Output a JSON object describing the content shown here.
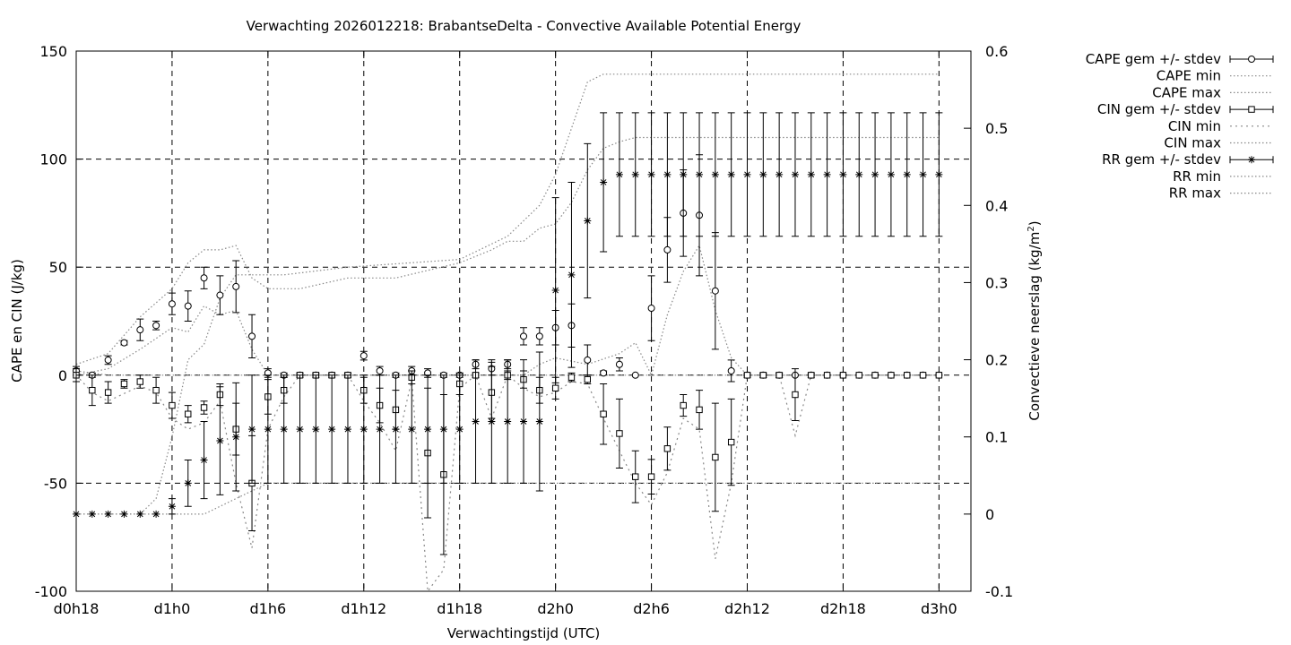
{
  "chart_data": {
    "type": "scatter",
    "title": "Verwachting 2026012218: BrabantseDelta - Convective Available Potential Energy",
    "xlabel": "Verwachtingstijd (UTC)",
    "ylabel": "CAPE en CIN (J/kg)",
    "y2label": "Convectieve neerslag (kg/m",
    "y2label_sup": "2",
    "y2label_end": ")",
    "xlim": [
      18,
      74
    ],
    "ylim": [
      -100,
      150
    ],
    "y2lim": [
      -0.1,
      0.6
    ],
    "x_ticks": [
      {
        "value": 18,
        "label": "d0h18"
      },
      {
        "value": 24,
        "label": "d1h0"
      },
      {
        "value": 30,
        "label": "d1h6"
      },
      {
        "value": 36,
        "label": "d1h12"
      },
      {
        "value": 42,
        "label": "d1h18"
      },
      {
        "value": 48,
        "label": "d2h0"
      },
      {
        "value": 54,
        "label": "d2h6"
      },
      {
        "value": 60,
        "label": "d2h12"
      },
      {
        "value": 66,
        "label": "d2h18"
      },
      {
        "value": 72,
        "label": "d3h0"
      }
    ],
    "y_ticks": [
      {
        "value": 150,
        "label": "150"
      },
      {
        "value": 100,
        "label": "100"
      },
      {
        "value": 50,
        "label": "50"
      },
      {
        "value": 0,
        "label": "0"
      },
      {
        "value": -50,
        "label": "-50"
      },
      {
        "value": -100,
        "label": "-100"
      }
    ],
    "y2_ticks": [
      {
        "value": 0.6,
        "label": "0.6"
      },
      {
        "value": 0.5,
        "label": "0.5"
      },
      {
        "value": 0.4,
        "label": "0.4"
      },
      {
        "value": 0.3,
        "label": "0.3"
      },
      {
        "value": 0.2,
        "label": "0.2"
      },
      {
        "value": 0.1,
        "label": "0.1"
      },
      {
        "value": 0,
        "label": "0"
      },
      {
        "value": -0.1,
        "label": "-0.1"
      }
    ],
    "grid": "dashed",
    "legend_position": "top-right-outside",
    "legend": [
      {
        "label": "CAPE gem +/- stdev",
        "style": "errorbar",
        "marker": "circle"
      },
      {
        "label": "CAPE min",
        "style": "dotted"
      },
      {
        "label": "CAPE max",
        "style": "dotted"
      },
      {
        "label": "CIN gem +/- stdev",
        "style": "errorbar",
        "marker": "square"
      },
      {
        "label": "CIN min",
        "style": "dotted-sparse"
      },
      {
        "label": "CIN max",
        "style": "dotted"
      },
      {
        "label": "RR gem +/- stdev",
        "style": "errorbar",
        "marker": "star"
      },
      {
        "label": "RR min",
        "style": "dotted"
      },
      {
        "label": "RR max",
        "style": "dotted"
      }
    ],
    "series": [
      {
        "id": "cape",
        "axis": "y",
        "marker": "circle",
        "x": [
          18,
          19,
          20,
          21,
          22,
          23,
          24,
          25,
          26,
          27,
          28,
          29,
          30,
          31,
          32,
          33,
          34,
          35,
          36,
          37,
          38,
          39,
          40,
          41,
          42,
          43,
          44,
          45,
          46,
          47,
          48,
          49,
          50,
          51,
          52,
          53,
          54,
          55,
          56,
          57,
          58,
          59,
          60,
          61,
          62,
          63,
          64,
          65,
          66,
          67,
          68,
          69,
          70,
          71,
          72
        ],
        "mean": [
          2,
          0,
          7,
          15,
          21,
          23,
          33,
          32,
          45,
          37,
          41,
          18,
          1,
          0,
          0,
          0,
          0,
          0,
          9,
          2,
          0,
          2,
          1,
          0,
          0,
          5,
          3,
          5,
          18,
          18,
          22,
          23,
          7,
          1,
          5,
          0,
          31,
          58,
          75,
          74,
          39,
          2,
          0,
          0,
          0,
          0,
          0,
          0,
          0,
          0,
          0,
          0,
          0,
          0,
          0
        ],
        "stdev": [
          2,
          1,
          2,
          1,
          5,
          2,
          5,
          7,
          5,
          9,
          12,
          10,
          2,
          1,
          1,
          0,
          0,
          1,
          2,
          2,
          1,
          2,
          2,
          1,
          1,
          2,
          3,
          2,
          4,
          4,
          8,
          10,
          7,
          1,
          3,
          0,
          15,
          15,
          20,
          28,
          27,
          5,
          1,
          1,
          1,
          0,
          0,
          0,
          0,
          0,
          0,
          0,
          0,
          0,
          0
        ]
      },
      {
        "id": "cin",
        "axis": "y",
        "marker": "square",
        "x": [
          18,
          19,
          20,
          21,
          22,
          23,
          24,
          25,
          26,
          27,
          28,
          29,
          30,
          31,
          32,
          33,
          34,
          35,
          36,
          37,
          38,
          39,
          40,
          41,
          42,
          43,
          44,
          45,
          46,
          47,
          48,
          49,
          50,
          51,
          52,
          53,
          54,
          55,
          56,
          57,
          58,
          59,
          60,
          61,
          62,
          63,
          64,
          65,
          66,
          67,
          68,
          69,
          70,
          71,
          72
        ],
        "mean": [
          0,
          -7,
          -8,
          -4,
          -3,
          -7,
          -14,
          -18,
          -15,
          -9,
          -25,
          -50,
          -10,
          -7,
          0,
          0,
          0,
          0,
          -7,
          -14,
          -16,
          -1,
          -36,
          -46,
          -4,
          0,
          -8,
          0,
          -2,
          -7,
          -6,
          -1,
          -2,
          -18,
          -27,
          -47,
          -47,
          -34,
          -14,
          -16,
          -38,
          -31,
          0,
          0,
          0,
          -9,
          0,
          0,
          0,
          0,
          0,
          0,
          0,
          0,
          0
        ],
        "stdev": [
          3,
          7,
          5,
          2,
          3,
          6,
          6,
          4,
          3,
          5,
          12,
          22,
          8,
          6,
          1,
          1,
          1,
          1,
          6,
          8,
          9,
          3,
          30,
          37,
          5,
          1,
          12,
          2,
          4,
          6,
          5,
          2,
          2,
          14,
          16,
          12,
          8,
          10,
          5,
          9,
          25,
          20,
          1,
          1,
          1,
          12,
          1,
          0,
          0,
          0,
          0,
          0,
          0,
          0,
          0
        ]
      },
      {
        "id": "rr",
        "axis": "y2",
        "marker": "star",
        "x": [
          18,
          19,
          20,
          21,
          22,
          23,
          24,
          25,
          26,
          27,
          28,
          29,
          30,
          31,
          32,
          33,
          34,
          35,
          36,
          37,
          38,
          39,
          40,
          41,
          42,
          43,
          44,
          45,
          46,
          47,
          48,
          49,
          50,
          51,
          52,
          53,
          54,
          55,
          56,
          57,
          58,
          59,
          60,
          61,
          62,
          63,
          64,
          65,
          66,
          67,
          68,
          69,
          70,
          71,
          72
        ],
        "mean": [
          0,
          0,
          0,
          0,
          0,
          0,
          0.01,
          0.04,
          0.07,
          0.095,
          0.1,
          0.11,
          0.11,
          0.11,
          0.11,
          0.11,
          0.11,
          0.11,
          0.11,
          0.11,
          0.11,
          0.11,
          0.11,
          0.11,
          0.11,
          0.12,
          0.12,
          0.12,
          0.12,
          0.12,
          0.29,
          0.31,
          0.38,
          0.43,
          0.44,
          0.44,
          0.44,
          0.44,
          0.44,
          0.44,
          0.44,
          0.44,
          0.44,
          0.44,
          0.44,
          0.44,
          0.44,
          0.44,
          0.44,
          0.44,
          0.44,
          0.44,
          0.44,
          0.44,
          0.44
        ],
        "stdev": [
          0,
          0,
          0,
          0,
          0,
          0,
          0.01,
          0.03,
          0.05,
          0.07,
          0.07,
          0.07,
          0.07,
          0.07,
          0.07,
          0.07,
          0.07,
          0.07,
          0.07,
          0.07,
          0.07,
          0.07,
          0.07,
          0.07,
          0.07,
          0.08,
          0.08,
          0.08,
          0.08,
          0.09,
          0.12,
          0.12,
          0.1,
          0.09,
          0.08,
          0.08,
          0.08,
          0.08,
          0.08,
          0.08,
          0.08,
          0.08,
          0.08,
          0.08,
          0.08,
          0.08,
          0.08,
          0.08,
          0.08,
          0.08,
          0.08,
          0.08,
          0.08,
          0.08,
          0.08
        ]
      }
    ],
    "envelopes": [
      {
        "id": "cape-max",
        "axis": "y",
        "x": [
          18,
          20,
          22,
          24,
          25,
          26,
          27,
          28,
          29,
          30,
          32,
          35,
          38,
          42,
          44,
          45,
          46,
          47,
          48,
          49,
          50,
          51,
          52,
          53,
          54,
          55,
          56,
          57,
          58,
          59,
          60,
          62,
          66,
          72
        ],
        "y": [
          5,
          10,
          27,
          40,
          52,
          58,
          58,
          60,
          45,
          40,
          40,
          45,
          45,
          52,
          58,
          62,
          62,
          68,
          70,
          80,
          95,
          105,
          108,
          110,
          110,
          110,
          110,
          110,
          110,
          110,
          110,
          110,
          110,
          110
        ]
      },
      {
        "id": "cape-min",
        "axis": "y",
        "x": [
          18,
          20,
          22,
          24,
          25,
          26,
          27,
          28,
          29,
          30,
          31,
          32,
          33,
          34,
          35,
          36,
          40,
          44,
          46,
          47,
          48,
          50,
          52,
          53,
          54,
          55,
          56,
          57,
          58,
          59,
          60,
          66,
          72
        ],
        "y": [
          0,
          3,
          12,
          22,
          20,
          32,
          28,
          30,
          12,
          0,
          0,
          0,
          0,
          0,
          0,
          0,
          0,
          0,
          0,
          5,
          8,
          5,
          10,
          15,
          0,
          28,
          48,
          60,
          30,
          8,
          0,
          0,
          0
        ]
      },
      {
        "id": "cin-min",
        "axis": "y",
        "x": [
          18,
          19,
          20,
          22,
          23,
          24,
          25,
          26,
          27,
          28,
          29,
          30,
          31,
          32,
          33,
          34,
          35,
          36,
          37,
          38,
          39,
          40,
          41,
          42,
          43,
          44,
          45,
          46,
          47,
          48,
          49,
          50,
          51,
          52,
          53,
          54,
          55,
          56,
          57,
          58,
          59,
          60,
          61,
          62,
          63,
          64,
          65,
          66,
          72
        ],
        "y": [
          0,
          -8,
          -12,
          -5,
          -8,
          -20,
          -25,
          -22,
          -12,
          -50,
          -80,
          -25,
          -10,
          0,
          0,
          0,
          0,
          -12,
          -22,
          -35,
          -2,
          -100,
          -90,
          -6,
          0,
          -20,
          0,
          -6,
          -10,
          -8,
          -3,
          -4,
          -20,
          -35,
          -50,
          -60,
          -45,
          -20,
          -25,
          -85,
          -50,
          0,
          0,
          0,
          -28,
          0,
          0,
          0,
          0
        ]
      },
      {
        "id": "cin-max",
        "axis": "y",
        "x": [
          18,
          20,
          22,
          24,
          26,
          28,
          30,
          32,
          34,
          36,
          38,
          40,
          42,
          44,
          46,
          48,
          50,
          52,
          54,
          56,
          58,
          60,
          62,
          66,
          72
        ],
        "y": [
          2,
          0,
          0,
          0,
          0,
          0,
          0,
          0,
          0,
          0,
          0,
          0,
          0,
          0,
          0,
          0,
          0,
          0,
          0,
          0,
          0,
          0,
          0,
          0,
          0
        ]
      },
      {
        "id": "rr-max",
        "axis": "y2",
        "x": [
          18,
          22,
          23,
          24,
          25,
          26,
          27,
          28,
          29,
          30,
          31,
          35,
          42,
          43,
          45,
          46,
          47,
          48,
          49,
          50,
          51,
          52,
          53,
          54,
          60,
          66,
          72
        ],
        "y": [
          0,
          0,
          0.02,
          0.1,
          0.2,
          0.22,
          0.28,
          0.31,
          0.31,
          0.31,
          0.31,
          0.32,
          0.33,
          0.34,
          0.36,
          0.38,
          0.4,
          0.44,
          0.5,
          0.56,
          0.57,
          0.57,
          0.57,
          0.57,
          0.57,
          0.57,
          0.57
        ]
      },
      {
        "id": "rr-min",
        "axis": "y2",
        "x": [
          18,
          23,
          24,
          26,
          28,
          30,
          35,
          42,
          44,
          46,
          48,
          50,
          52,
          54,
          60,
          66,
          72
        ],
        "y": [
          0,
          0,
          0,
          0,
          0.02,
          0.04,
          0.04,
          0.04,
          0.04,
          0.04,
          0.04,
          0.04,
          0.04,
          0.04,
          0.04,
          0.04,
          0.04
        ]
      }
    ]
  }
}
